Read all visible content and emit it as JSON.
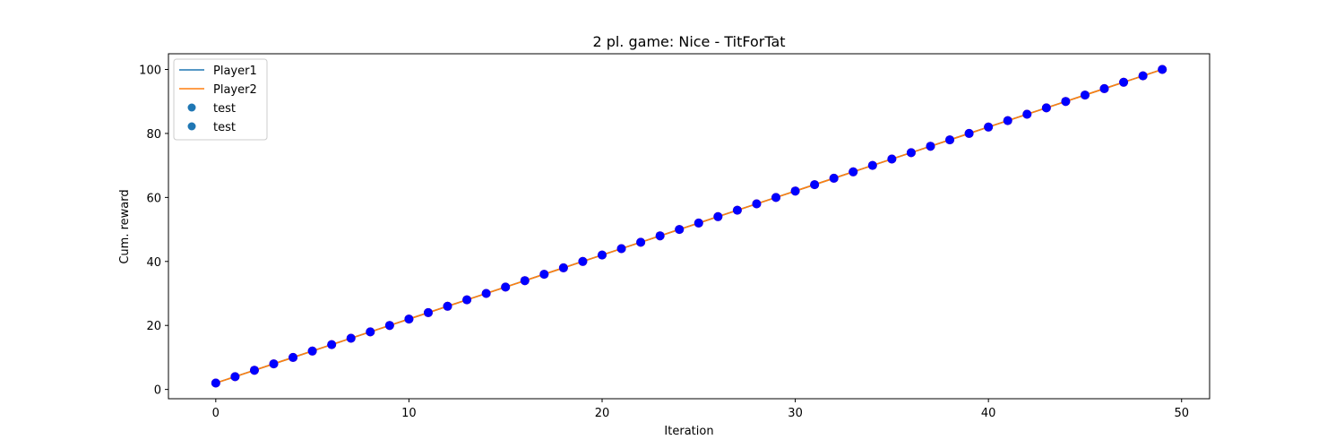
{
  "chart_data": {
    "type": "line",
    "title": "2 pl. game: Nice - TitForTat",
    "xlabel": "Iteration",
    "ylabel": "Cum. reward",
    "xlim": [
      -2.45,
      51.45
    ],
    "ylim": [
      -2.9,
      104.9
    ],
    "xticks": [
      0,
      10,
      20,
      30,
      40,
      50
    ],
    "yticks": [
      0,
      20,
      40,
      60,
      80,
      100
    ],
    "grid": false,
    "legend_position": "top-left",
    "x": [
      0,
      1,
      2,
      3,
      4,
      5,
      6,
      7,
      8,
      9,
      10,
      11,
      12,
      13,
      14,
      15,
      16,
      17,
      18,
      19,
      20,
      21,
      22,
      23,
      24,
      25,
      26,
      27,
      28,
      29,
      30,
      31,
      32,
      33,
      34,
      35,
      36,
      37,
      38,
      39,
      40,
      41,
      42,
      43,
      44,
      45,
      46,
      47,
      48,
      49
    ],
    "series": [
      {
        "name": "Player1",
        "kind": "line",
        "color": "#1f77b4",
        "values": [
          2,
          4,
          6,
          8,
          10,
          12,
          14,
          16,
          18,
          20,
          22,
          24,
          26,
          28,
          30,
          32,
          34,
          36,
          38,
          40,
          42,
          44,
          46,
          48,
          50,
          52,
          54,
          56,
          58,
          60,
          62,
          64,
          66,
          68,
          70,
          72,
          74,
          76,
          78,
          80,
          82,
          84,
          86,
          88,
          90,
          92,
          94,
          96,
          98,
          100
        ]
      },
      {
        "name": "Player2",
        "kind": "line",
        "color": "#ff7f0e",
        "values": [
          2,
          4,
          6,
          8,
          10,
          12,
          14,
          16,
          18,
          20,
          22,
          24,
          26,
          28,
          30,
          32,
          34,
          36,
          38,
          40,
          42,
          44,
          46,
          48,
          50,
          52,
          54,
          56,
          58,
          60,
          62,
          64,
          66,
          68,
          70,
          72,
          74,
          76,
          78,
          80,
          82,
          84,
          86,
          88,
          90,
          92,
          94,
          96,
          98,
          100
        ]
      },
      {
        "name": "test",
        "kind": "scatter",
        "color": "#ff0000",
        "legend_color": "#1f77b4",
        "values": [
          2,
          4,
          6,
          8,
          10,
          12,
          14,
          16,
          18,
          20,
          22,
          24,
          26,
          28,
          30,
          32,
          34,
          36,
          38,
          40,
          42,
          44,
          46,
          48,
          50,
          52,
          54,
          56,
          58,
          60,
          62,
          64,
          66,
          68,
          70,
          72,
          74,
          76,
          78,
          80,
          82,
          84,
          86,
          88,
          90,
          92,
          94,
          96,
          98,
          100
        ]
      },
      {
        "name": "test",
        "kind": "scatter",
        "color": "#0000ff",
        "legend_color": "#1f77b4",
        "values": [
          2,
          4,
          6,
          8,
          10,
          12,
          14,
          16,
          18,
          20,
          22,
          24,
          26,
          28,
          30,
          32,
          34,
          36,
          38,
          40,
          42,
          44,
          46,
          48,
          50,
          52,
          54,
          56,
          58,
          60,
          62,
          64,
          66,
          68,
          70,
          72,
          74,
          76,
          78,
          80,
          82,
          84,
          86,
          88,
          90,
          92,
          94,
          96,
          98,
          100
        ]
      }
    ]
  }
}
